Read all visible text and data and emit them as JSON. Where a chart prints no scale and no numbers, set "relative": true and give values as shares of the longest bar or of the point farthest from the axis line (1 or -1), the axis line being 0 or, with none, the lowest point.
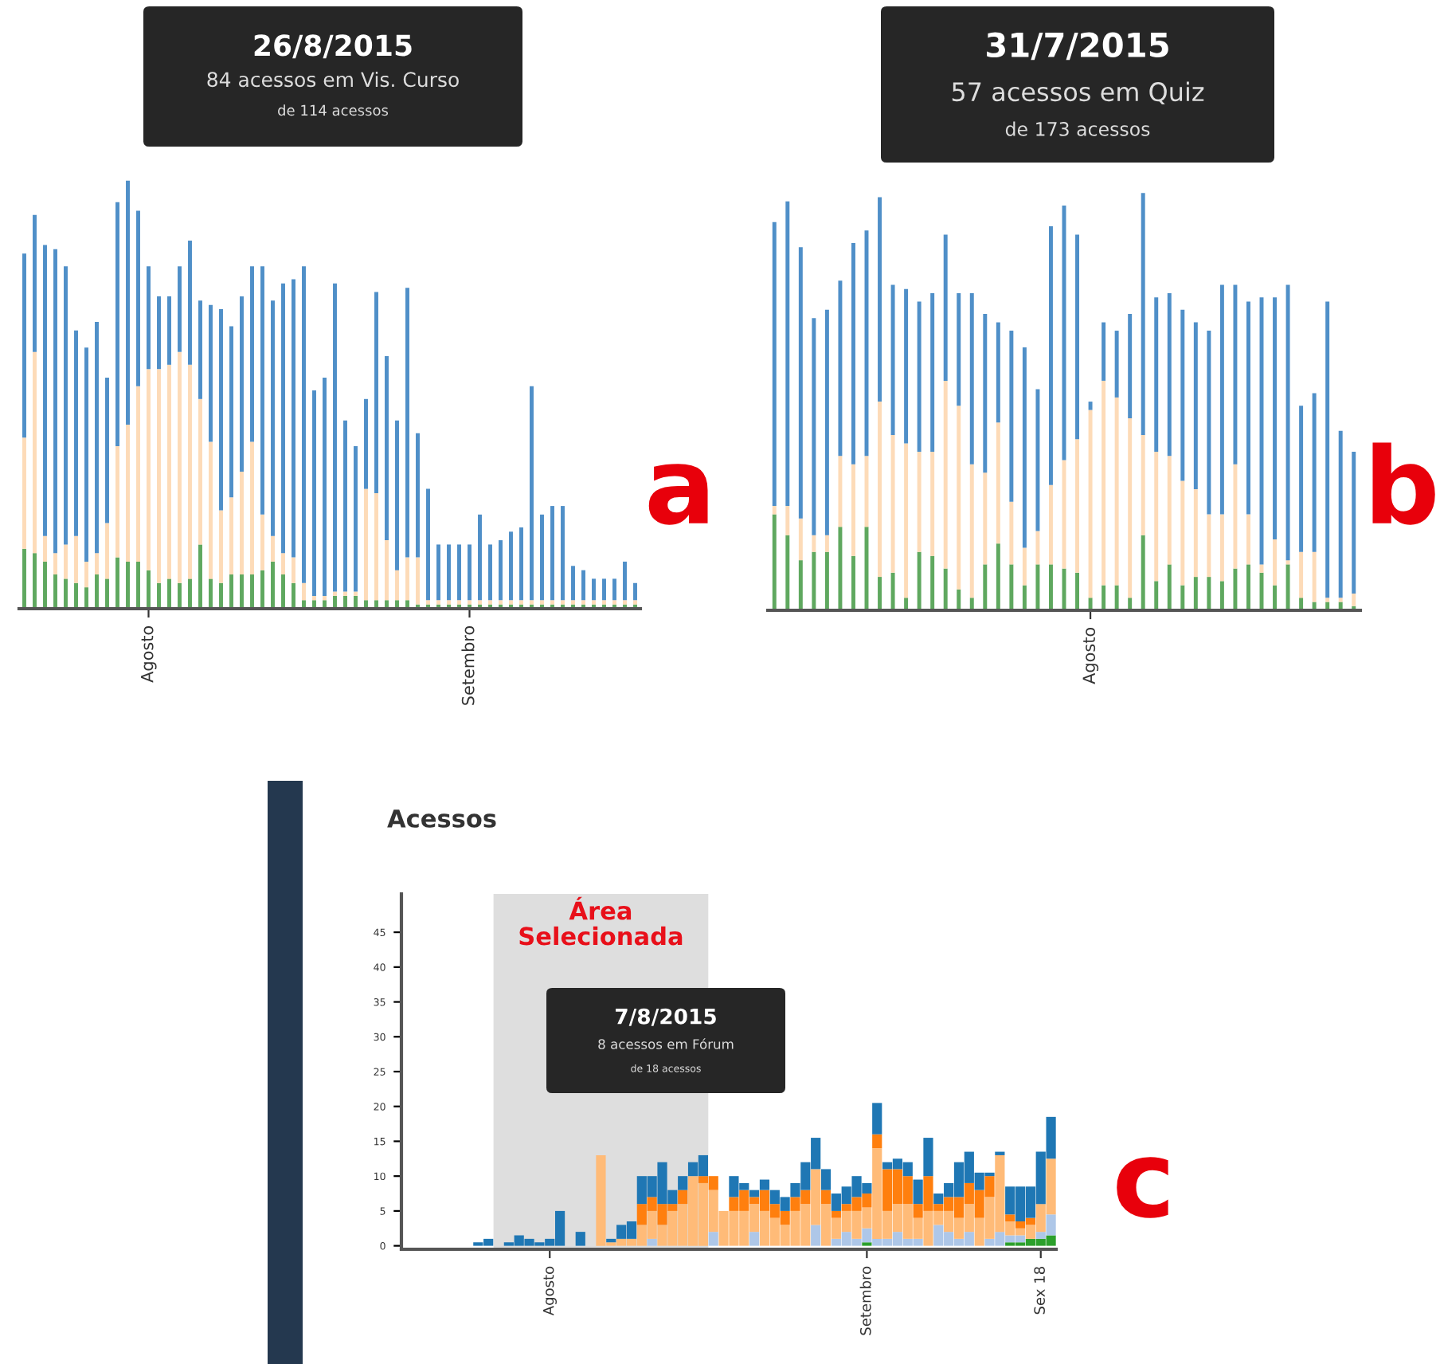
{
  "chart_data": [
    {
      "type": "bar",
      "stacked": true,
      "relative": true,
      "categories": [
        null,
        null,
        null,
        null,
        null,
        null,
        null,
        null,
        null,
        null,
        null,
        null,
        "Agosto",
        null,
        null,
        null,
        null,
        null,
        null,
        null,
        null,
        null,
        null,
        null,
        null,
        null,
        null,
        null,
        null,
        null,
        null,
        null,
        null,
        null,
        null,
        null,
        null,
        null,
        null,
        null,
        null,
        null,
        null,
        "Setembro",
        null,
        null,
        null,
        null,
        null,
        null,
        null,
        null,
        null,
        null,
        null,
        null,
        null,
        null,
        null,
        null
      ],
      "series": [
        {
          "color": "#5fa85f",
          "values": [
            0.14,
            0.13,
            0.11,
            0.08,
            0.07,
            0.06,
            0.05,
            0.08,
            0.07,
            0.12,
            0.11,
            0.11,
            0.09,
            0.06,
            0.07,
            0.06,
            0.07,
            0.15,
            0.07,
            0.06,
            0.08,
            0.08,
            0.08,
            0.09,
            0.11,
            0.08,
            0.06,
            0.02,
            0.02,
            0.02,
            0.03,
            0.03,
            0.03,
            0.02,
            0.02,
            0.02,
            0.02,
            0.02,
            0.01,
            0.01,
            0.01,
            0.01,
            0.01,
            0.01,
            0.01,
            0.01,
            0.01,
            0.01,
            0.01,
            0.01,
            0.01,
            0.01,
            0.01,
            0.01,
            0.01,
            0.01,
            0.01,
            0.01,
            0.01,
            0.01
          ]
        },
        {
          "color": "#fddbb8",
          "values": [
            0.26,
            0.47,
            0.06,
            0.05,
            0.08,
            0.11,
            0.06,
            0.05,
            0.13,
            0.26,
            0.32,
            0.41,
            0.47,
            0.5,
            0.5,
            0.54,
            0.5,
            0.34,
            0.32,
            0.17,
            0.18,
            0.24,
            0.31,
            0.13,
            0.06,
            0.05,
            0.06,
            0.04,
            0.01,
            0.01,
            0.01,
            0.01,
            0.01,
            0.26,
            0.25,
            0.14,
            0.07,
            0.1,
            0.11,
            0.01,
            0.01,
            0.01,
            0.01,
            0.01,
            0.01,
            0.01,
            0.01,
            0.01,
            0.01,
            0.01,
            0.01,
            0.01,
            0.01,
            0.01,
            0.01,
            0.01,
            0.01,
            0.01,
            0.01,
            0.01
          ]
        },
        {
          "color": "#4f8fc8",
          "values": [
            0.43,
            0.32,
            0.68,
            0.71,
            0.65,
            0.48,
            0.5,
            0.54,
            0.34,
            0.57,
            0.57,
            0.41,
            0.24,
            0.17,
            0.16,
            0.2,
            0.29,
            0.23,
            0.32,
            0.47,
            0.4,
            0.41,
            0.41,
            0.58,
            0.55,
            0.63,
            0.65,
            0.74,
            0.48,
            0.51,
            0.72,
            0.4,
            0.34,
            0.21,
            0.47,
            0.43,
            0.35,
            0.63,
            0.29,
            0.26,
            0.13,
            0.13,
            0.13,
            0.13,
            0.2,
            0.13,
            0.14,
            0.16,
            0.17,
            0.5,
            0.2,
            0.22,
            0.22,
            0.08,
            0.07,
            0.05,
            0.05,
            0.05,
            0.09,
            0.04
          ]
        }
      ],
      "annotations": [
        "26/8/2015",
        "84 acessos em Vis. Curso",
        "de 114 acessos",
        "a"
      ]
    },
    {
      "type": "bar",
      "stacked": true,
      "relative": true,
      "categories": [
        null,
        null,
        null,
        null,
        null,
        null,
        null,
        null,
        null,
        null,
        null,
        null,
        null,
        null,
        null,
        null,
        null,
        null,
        null,
        null,
        null,
        null,
        null,
        null,
        "Agosto",
        null,
        null,
        null,
        null,
        null,
        null,
        null,
        null,
        null,
        null,
        null,
        null,
        null,
        null,
        null,
        null,
        null,
        null,
        null,
        null
      ],
      "series": [
        {
          "color": "#5fa85f",
          "values": [
            0.23,
            0.18,
            0.12,
            0.14,
            0.14,
            0.2,
            0.13,
            0.2,
            0.08,
            0.09,
            0.03,
            0.14,
            0.13,
            0.1,
            0.05,
            0.03,
            0.11,
            0.16,
            0.11,
            0.06,
            0.11,
            0.11,
            0.1,
            0.09,
            0.03,
            0.06,
            0.06,
            0.03,
            0.18,
            0.07,
            0.11,
            0.06,
            0.08,
            0.08,
            0.07,
            0.1,
            0.11,
            0.09,
            0.06,
            0.11,
            0.03,
            0.02,
            0.02,
            0.02,
            0.01
          ]
        },
        {
          "color": "#fddbb8",
          "values": [
            0.02,
            0.07,
            0.1,
            0.04,
            0.04,
            0.17,
            0.22,
            0.17,
            0.42,
            0.33,
            0.37,
            0.24,
            0.25,
            0.45,
            0.44,
            0.32,
            0.22,
            0.29,
            0.15,
            0.09,
            0.08,
            0.19,
            0.26,
            0.32,
            0.45,
            0.49,
            0.45,
            0.43,
            0.24,
            0.31,
            0.26,
            0.25,
            0.21,
            0.15,
            0.16,
            0.25,
            0.12,
            0.02,
            0.11,
            0.01,
            0.11,
            0.12,
            0.01,
            0.01,
            0.03
          ]
        },
        {
          "color": "#4f8fc8",
          "values": [
            0.68,
            0.73,
            0.65,
            0.52,
            0.54,
            0.42,
            0.53,
            0.54,
            0.49,
            0.36,
            0.37,
            0.36,
            0.38,
            0.35,
            0.27,
            0.41,
            0.38,
            0.24,
            0.41,
            0.48,
            0.34,
            0.62,
            0.61,
            0.49,
            0.02,
            0.14,
            0.16,
            0.25,
            0.58,
            0.37,
            0.39,
            0.41,
            0.4,
            0.44,
            0.55,
            0.43,
            0.51,
            0.64,
            0.58,
            0.66,
            0.35,
            0.38,
            0.71,
            0.4,
            0.34
          ]
        }
      ],
      "annotations": [
        "31/7/2015",
        "57 acessos em Quiz",
        "de 173 acessos",
        "b"
      ]
    },
    {
      "type": "bar",
      "stacked": true,
      "title": "Acessos",
      "categories": [
        null,
        null,
        null,
        null,
        null,
        null,
        null,
        null,
        null,
        null,
        null,
        null,
        null,
        null,
        "Agosto",
        null,
        null,
        null,
        null,
        null,
        null,
        null,
        null,
        null,
        null,
        null,
        null,
        null,
        null,
        null,
        null,
        null,
        null,
        null,
        null,
        null,
        null,
        null,
        null,
        null,
        null,
        null,
        null,
        null,
        null,
        "Setembro",
        null,
        null,
        null,
        null,
        null,
        null,
        null,
        null,
        null,
        null,
        null,
        null,
        null,
        null,
        null,
        null,
        "Sex 18",
        null
      ],
      "ylim": [
        -0.5,
        50.5
      ],
      "yticks": [
        0,
        5,
        10,
        15,
        20,
        25,
        30,
        35,
        40,
        45
      ],
      "series": [
        {
          "color": "#2ca02c",
          "values": [
            null,
            null,
            null,
            null,
            null,
            null,
            null,
            null,
            null,
            null,
            null,
            null,
            null,
            null,
            null,
            null,
            null,
            null,
            null,
            null,
            null,
            null,
            null,
            null,
            null,
            null,
            null,
            null,
            null,
            null,
            null,
            null,
            null,
            null,
            null,
            null,
            null,
            null,
            null,
            null,
            null,
            null,
            null,
            null,
            null,
            0.5,
            null,
            null,
            null,
            null,
            null,
            null,
            null,
            null,
            null,
            null,
            null,
            null,
            null,
            0.5,
            0.5,
            1,
            1,
            1.5
          ]
        },
        {
          "color": "#aec7e8",
          "values": [
            null,
            null,
            null,
            null,
            null,
            null,
            null,
            null,
            null,
            null,
            null,
            null,
            null,
            null,
            null,
            null,
            null,
            null,
            null,
            null,
            null,
            null,
            null,
            null,
            1,
            null,
            null,
            null,
            null,
            null,
            2,
            null,
            null,
            null,
            2,
            null,
            null,
            null,
            null,
            null,
            3,
            null,
            1,
            2,
            1,
            2,
            1,
            1,
            2,
            1,
            1,
            null,
            3,
            2,
            1,
            2,
            null,
            1,
            2,
            1,
            1,
            null,
            1,
            3
          ]
        },
        {
          "color": "#ffbb78",
          "values": [
            null,
            null,
            null,
            null,
            null,
            null,
            null,
            null,
            null,
            null,
            null,
            null,
            null,
            null,
            null,
            null,
            null,
            null,
            null,
            13,
            0.5,
            1,
            1,
            3,
            4,
            3,
            5,
            6,
            10,
            9,
            6,
            5,
            5,
            5,
            4,
            5,
            4,
            3,
            5,
            6,
            8,
            6,
            3,
            3,
            4,
            3,
            13,
            4,
            4,
            5,
            3,
            5,
            2,
            3,
            3,
            4,
            4,
            6,
            11,
            2,
            1,
            2,
            4,
            8
          ]
        },
        {
          "color": "#ff7f0e",
          "values": [
            null,
            null,
            null,
            null,
            null,
            null,
            null,
            null,
            null,
            null,
            null,
            null,
            null,
            null,
            null,
            null,
            null,
            null,
            null,
            null,
            null,
            null,
            null,
            3,
            2,
            3,
            1,
            2,
            null,
            1,
            2,
            null,
            2,
            3,
            1,
            3,
            2,
            2,
            2,
            2,
            null,
            2,
            1,
            1,
            2,
            2,
            2,
            6,
            5,
            4,
            2,
            5,
            1,
            2,
            3,
            3,
            4,
            3,
            null,
            1,
            1,
            1,
            null,
            null
          ]
        },
        {
          "color": "#1f77b4",
          "values": [
            null,
            null,
            null,
            null,
            null,
            null,
            null,
            0.5,
            1,
            null,
            0.5,
            1.5,
            1,
            0.5,
            1,
            5,
            null,
            2,
            null,
            null,
            0.5,
            2,
            2.5,
            4,
            3,
            6,
            2,
            2,
            2,
            3,
            null,
            null,
            3,
            1,
            1,
            1.5,
            2,
            2,
            2,
            4,
            4.5,
            3,
            2.5,
            2.5,
            3,
            1.5,
            4.5,
            1,
            1.5,
            2,
            3.5,
            5.5,
            1.5,
            2,
            5,
            4.5,
            2.5,
            0.5,
            0.5,
            4,
            5,
            4.5,
            7.5,
            6
          ]
        }
      ],
      "annotations": [
        "7/8/2015",
        "8 acessos em Fórum",
        "de 18 acessos",
        "c",
        "Área Selecionada"
      ]
    }
  ]
}
